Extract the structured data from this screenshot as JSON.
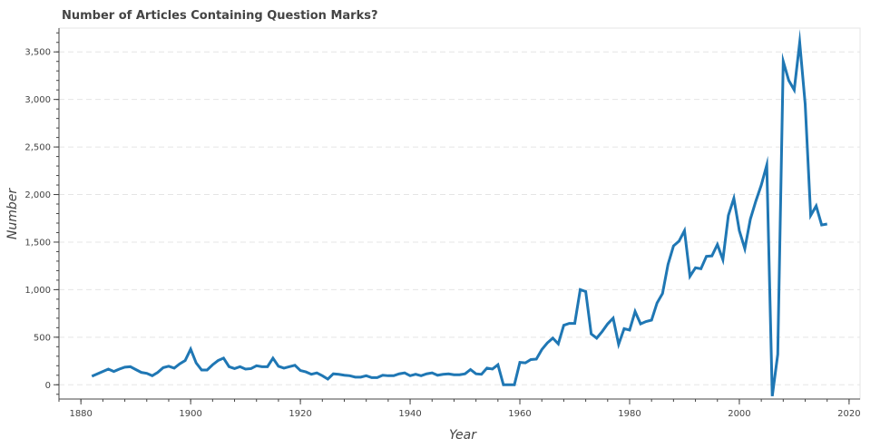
{
  "chart_data": {
    "type": "line",
    "title": "Number of Articles Containing Question Marks?",
    "xlabel": "Year",
    "ylabel": "Number",
    "xlim": [
      1876,
      2022
    ],
    "ylim": [
      -150,
      3750
    ],
    "x_ticks": [
      1880,
      1900,
      1920,
      1940,
      1960,
      1980,
      2000,
      2020
    ],
    "x_tick_labels": [
      "1880",
      "1900",
      "1920",
      "1940",
      "1960",
      "1980",
      "2000",
      "2020"
    ],
    "y_ticks": [
      0,
      500,
      1000,
      1500,
      2000,
      2500,
      3000,
      3500
    ],
    "y_tick_labels": [
      "0",
      "500",
      "1,000",
      "1,500",
      "2,000",
      "2,500",
      "3,000",
      "3,500"
    ],
    "grid": {
      "x": false,
      "y": true,
      "style": "dashed"
    },
    "legend": "none",
    "series": [
      {
        "color": "#1f77b4",
        "x": [
          1882,
          1883,
          1884,
          1885,
          1886,
          1887,
          1888,
          1889,
          1890,
          1891,
          1892,
          1893,
          1894,
          1895,
          1896,
          1897,
          1898,
          1899,
          1900,
          1901,
          1902,
          1903,
          1904,
          1905,
          1906,
          1907,
          1908,
          1909,
          1910,
          1911,
          1912,
          1913,
          1914,
          1915,
          1916,
          1917,
          1918,
          1919,
          1920,
          1921,
          1922,
          1923,
          1924,
          1925,
          1926,
          1927,
          1928,
          1929,
          1930,
          1931,
          1932,
          1933,
          1934,
          1935,
          1936,
          1937,
          1938,
          1939,
          1940,
          1941,
          1942,
          1943,
          1944,
          1945,
          1946,
          1947,
          1948,
          1949,
          1950,
          1951,
          1952,
          1953,
          1954,
          1955,
          1956,
          1957,
          1958,
          1959,
          1960,
          1961,
          1962,
          1963,
          1964,
          1965,
          1966,
          1967,
          1968,
          1969,
          1970,
          1971,
          1972,
          1973,
          1974,
          1975,
          1976,
          1977,
          1978,
          1979,
          1980,
          1981,
          1982,
          1983,
          1984,
          1985,
          1986,
          1987,
          1988,
          1989,
          1990,
          1991,
          1992,
          1993,
          1994,
          1995,
          1996,
          1997,
          1998,
          1999,
          2000,
          2001,
          2002,
          2003,
          2004,
          2005,
          2006,
          2007,
          2008,
          2009,
          2010,
          2011,
          2012,
          2013,
          2014,
          2015,
          2016
        ],
        "y": [
          90,
          115,
          140,
          165,
          140,
          165,
          185,
          190,
          160,
          130,
          120,
          95,
          130,
          180,
          195,
          175,
          220,
          255,
          375,
          230,
          155,
          155,
          210,
          255,
          280,
          190,
          170,
          190,
          165,
          170,
          200,
          190,
          190,
          280,
          195,
          175,
          190,
          205,
          150,
          135,
          110,
          125,
          95,
          60,
          115,
          110,
          100,
          95,
          80,
          80,
          95,
          75,
          75,
          100,
          95,
          95,
          115,
          125,
          95,
          110,
          95,
          115,
          125,
          100,
          110,
          115,
          105,
          105,
          115,
          160,
          115,
          110,
          175,
          165,
          210,
          0,
          0,
          0,
          235,
          230,
          265,
          270,
          370,
          440,
          490,
          430,
          625,
          645,
          645,
          1000,
          980,
          535,
          490,
          560,
          640,
          700,
          425,
          590,
          575,
          770,
          640,
          665,
          680,
          860,
          960,
          1265,
          1460,
          1510,
          1620,
          1140,
          1230,
          1220,
          1350,
          1355,
          1475,
          1315,
          1780,
          1960,
          1620,
          1430,
          1740,
          1930,
          2100,
          2310,
          -120,
          320,
          3400,
          3200,
          3100,
          3600,
          2950,
          1780,
          1880,
          1680,
          1690
        ]
      }
    ]
  }
}
